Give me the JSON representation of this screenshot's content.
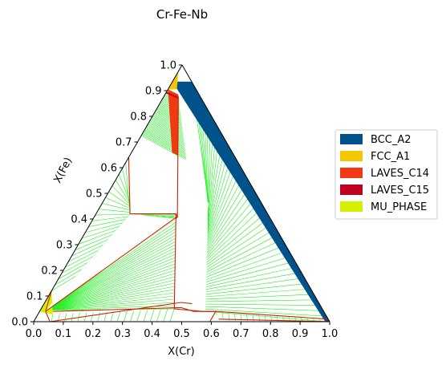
{
  "chart_data": {
    "type": "ternary-phase-diagram",
    "title": "Cr-Fe-Nb",
    "xlabel": "X(Cr)",
    "ylabel": "X(Fe)",
    "xlim": [
      0,
      1
    ],
    "ylim": [
      0,
      1
    ],
    "x_ticks": [
      "0.0",
      "0.1",
      "0.2",
      "0.3",
      "0.4",
      "0.5",
      "0.6",
      "0.7",
      "0.8",
      "0.9",
      "1.0"
    ],
    "y_ticks": [
      "0.0",
      "0.1",
      "0.2",
      "0.3",
      "0.4",
      "0.5",
      "0.6",
      "0.7",
      "0.8",
      "0.9",
      "1.0"
    ],
    "legend_position": "right",
    "legend": [
      {
        "name": "BCC_A2",
        "color": "#00538a"
      },
      {
        "name": "FCC_A1",
        "color": "#f4c800"
      },
      {
        "name": "LAVES_C14",
        "color": "#f13a13"
      },
      {
        "name": "LAVES_C15",
        "color": "#c10020"
      },
      {
        "name": "MU_PHASE",
        "color": "#d4f000"
      }
    ],
    "tieline_color": "#22ee22",
    "boundary_color": "#cc2200",
    "phase_regions": [
      {
        "name": "bcc_cr_fe_edge",
        "color": "#00538a",
        "points": [
          [
            0.0,
            0.935
          ],
          [
            0.065,
            0.935
          ],
          [
            1.0,
            0.0
          ],
          [
            0.985,
            0.0
          ]
        ]
      },
      {
        "name": "fcc_fe_corner",
        "color": "#f4c800",
        "points": [
          [
            0.0,
            0.975
          ],
          [
            0.0,
            0.905
          ],
          [
            0.03,
            0.905
          ]
        ]
      },
      {
        "name": "laves_c14_fe_side",
        "color": "#f13a13",
        "points": [
          [
            0.27,
            0.42
          ],
          [
            0.0,
            0.905
          ],
          [
            0.045,
            0.885
          ],
          [
            0.28,
            0.41
          ]
        ]
      },
      {
        "name": "laves_c15_edge",
        "color": "#c10020",
        "points": [
          [
            0.0,
            0.89
          ],
          [
            0.05,
            0.87
          ],
          [
            0.05,
            0.875
          ],
          [
            0.0,
            0.895
          ]
        ]
      },
      {
        "name": "mu_phase_fe_side",
        "color": "#d4f000",
        "points": [
          [
            0.04,
            0.03
          ],
          [
            0.0,
            0.04
          ],
          [
            0.0,
            0.12
          ],
          [
            0.05,
            0.03
          ]
        ]
      }
    ],
    "boundaries": [
      [
        [
          0.0,
          0.64
        ],
        [
          0.115,
          0.42
        ],
        [
          0.27,
          0.42
        ],
        [
          0.45,
          0.05
        ],
        [
          0.55,
          0.04
        ],
        [
          0.595,
          0.04
        ],
        [
          0.595,
          0.0
        ]
      ],
      [
        [
          0.0,
          0.895
        ],
        [
          0.05,
          0.875
        ],
        [
          0.28,
          0.41
        ],
        [
          0.27,
          0.42
        ]
      ],
      [
        [
          0.02,
          0.04
        ],
        [
          0.28,
          0.41
        ],
        [
          0.28,
          0.4
        ]
      ],
      [
        [
          0.045,
          0.04
        ],
        [
          0.47,
          0.055
        ],
        [
          0.52,
          0.04
        ],
        [
          0.595,
          0.04
        ]
      ],
      [
        [
          0.055,
          0.0
        ],
        [
          0.46,
          0.075
        ],
        [
          0.5,
          0.07
        ]
      ],
      [
        [
          0.595,
          0.04
        ],
        [
          0.99,
          0.01
        ]
      ],
      [
        [
          0.62,
          0.01
        ],
        [
          1.0,
          0.0
        ]
      ],
      [
        [
          0.0,
          0.12
        ],
        [
          0.02,
          0.04
        ]
      ],
      [
        [
          0.02,
          0.04
        ],
        [
          0.055,
          0.0
        ]
      ]
    ],
    "blank_regions": [
      [
        [
          0.0,
          0.72
        ],
        [
          0.0,
          0.64
        ],
        [
          0.115,
          0.42
        ],
        [
          0.27,
          0.42
        ],
        [
          0.28,
          0.41
        ],
        [
          0.45,
          0.05
        ],
        [
          0.595,
          0.04
        ],
        [
          0.595,
          0.0
        ],
        [
          0.66,
          0.0
        ],
        [
          0.53,
          0.06
        ],
        [
          0.36,
          0.46
        ],
        [
          0.2,
          0.63
        ],
        [
          0.0,
          0.72
        ]
      ],
      [
        [
          0.02,
          0.04
        ],
        [
          0.28,
          0.4
        ],
        [
          0.115,
          0.42
        ],
        [
          0.02,
          0.05
        ]
      ]
    ]
  }
}
